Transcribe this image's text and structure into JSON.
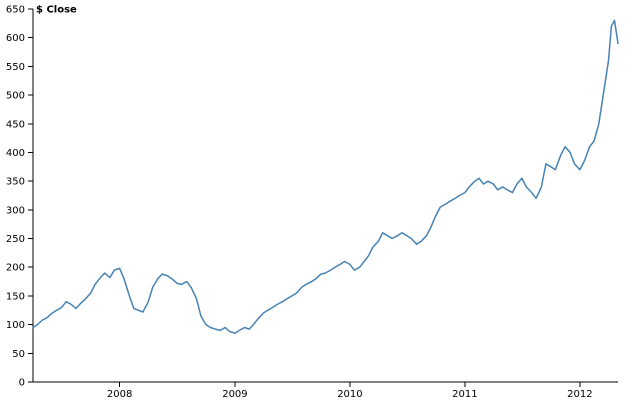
{
  "chart_data": {
    "type": "line",
    "title": "",
    "xlabel": "",
    "ylabel": "$ Close",
    "ylim": [
      0,
      650
    ],
    "yticks": [
      0,
      50,
      100,
      150,
      200,
      250,
      300,
      350,
      400,
      450,
      500,
      550,
      600,
      650
    ],
    "x_ticks": [
      "2008",
      "2009",
      "2010",
      "2011",
      "2012"
    ],
    "x_tick_dates": [
      "2008-01-01",
      "2009-01-01",
      "2010-01-01",
      "2011-01-01",
      "2012-01-01"
    ],
    "xlim": [
      "2007-04-01",
      "2012-05-01"
    ],
    "grid": false,
    "line_color": "#4682b4",
    "series": [
      {
        "name": "",
        "x": [
          "2007-04-01",
          "2007-04-15",
          "2007-05-01",
          "2007-05-15",
          "2007-06-01",
          "2007-06-15",
          "2007-07-01",
          "2007-07-15",
          "2007-08-01",
          "2007-08-15",
          "2007-09-01",
          "2007-09-15",
          "2007-10-01",
          "2007-10-15",
          "2007-11-01",
          "2007-11-15",
          "2007-12-01",
          "2007-12-15",
          "2008-01-01",
          "2008-01-15",
          "2008-02-01",
          "2008-02-15",
          "2008-03-01",
          "2008-03-15",
          "2008-04-01",
          "2008-04-15",
          "2008-05-01",
          "2008-05-15",
          "2008-06-01",
          "2008-06-15",
          "2008-07-01",
          "2008-07-15",
          "2008-08-01",
          "2008-08-15",
          "2008-09-01",
          "2008-09-15",
          "2008-10-01",
          "2008-10-15",
          "2008-11-01",
          "2008-11-15",
          "2008-12-01",
          "2008-12-15",
          "2009-01-01",
          "2009-01-15",
          "2009-02-01",
          "2009-02-15",
          "2009-03-01",
          "2009-03-15",
          "2009-04-01",
          "2009-04-15",
          "2009-05-01",
          "2009-05-15",
          "2009-06-01",
          "2009-06-15",
          "2009-07-01",
          "2009-07-15",
          "2009-08-01",
          "2009-08-15",
          "2009-09-01",
          "2009-09-15",
          "2009-10-01",
          "2009-10-15",
          "2009-11-01",
          "2009-11-15",
          "2009-12-01",
          "2009-12-15",
          "2010-01-01",
          "2010-01-15",
          "2010-02-01",
          "2010-02-15",
          "2010-03-01",
          "2010-03-15",
          "2010-04-01",
          "2010-04-15",
          "2010-05-01",
          "2010-05-15",
          "2010-06-01",
          "2010-06-15",
          "2010-07-01",
          "2010-07-15",
          "2010-08-01",
          "2010-08-15",
          "2010-09-01",
          "2010-09-15",
          "2010-10-01",
          "2010-10-15",
          "2010-11-01",
          "2010-11-15",
          "2010-12-01",
          "2010-12-15",
          "2011-01-01",
          "2011-01-15",
          "2011-02-01",
          "2011-02-15",
          "2011-03-01",
          "2011-03-15",
          "2011-04-01",
          "2011-04-15",
          "2011-05-01",
          "2011-05-15",
          "2011-06-01",
          "2011-06-15",
          "2011-07-01",
          "2011-07-15",
          "2011-08-01",
          "2011-08-15",
          "2011-09-01",
          "2011-09-15",
          "2011-10-01",
          "2011-10-15",
          "2011-11-01",
          "2011-11-15",
          "2011-12-01",
          "2011-12-15",
          "2012-01-01",
          "2012-01-15",
          "2012-02-01",
          "2012-02-15",
          "2012-03-01",
          "2012-03-15",
          "2012-04-01",
          "2012-04-10",
          "2012-04-20",
          "2012-05-01"
        ],
        "values": [
          95,
          100,
          108,
          112,
          120,
          125,
          130,
          140,
          135,
          128,
          138,
          145,
          155,
          170,
          182,
          190,
          182,
          195,
          198,
          180,
          150,
          128,
          125,
          122,
          140,
          165,
          180,
          188,
          185,
          180,
          172,
          170,
          175,
          165,
          145,
          115,
          100,
          95,
          92,
          90,
          95,
          88,
          85,
          90,
          95,
          92,
          100,
          110,
          120,
          125,
          130,
          135,
          140,
          145,
          150,
          155,
          165,
          170,
          175,
          180,
          188,
          190,
          195,
          200,
          205,
          210,
          205,
          195,
          200,
          210,
          220,
          235,
          245,
          260,
          255,
          250,
          255,
          260,
          255,
          250,
          240,
          245,
          255,
          270,
          290,
          305,
          310,
          315,
          320,
          325,
          330,
          340,
          350,
          355,
          345,
          350,
          345,
          335,
          340,
          335,
          330,
          345,
          355,
          340,
          330,
          320,
          340,
          380,
          375,
          370,
          395,
          410,
          400,
          380,
          370,
          385,
          410,
          420,
          450,
          500,
          560,
          620,
          630,
          590
        ]
      }
    ]
  }
}
